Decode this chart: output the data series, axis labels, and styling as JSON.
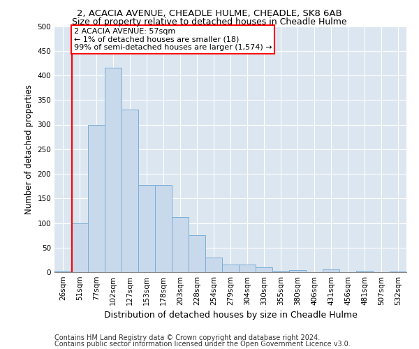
{
  "title": "2, ACACIA AVENUE, CHEADLE HULME, CHEADLE, SK8 6AB",
  "subtitle": "Size of property relative to detached houses in Cheadle Hulme",
  "xlabel": "Distribution of detached houses by size in Cheadle Hulme",
  "ylabel": "Number of detached properties",
  "bar_labels": [
    "26sqm",
    "51sqm",
    "77sqm",
    "102sqm",
    "127sqm",
    "153sqm",
    "178sqm",
    "203sqm",
    "228sqm",
    "254sqm",
    "279sqm",
    "304sqm",
    "330sqm",
    "355sqm",
    "380sqm",
    "406sqm",
    "431sqm",
    "456sqm",
    "481sqm",
    "507sqm",
    "532sqm"
  ],
  "bar_values": [
    3,
    100,
    300,
    415,
    330,
    178,
    178,
    112,
    75,
    30,
    15,
    15,
    10,
    3,
    4,
    0,
    6,
    0,
    3,
    0,
    2
  ],
  "bar_color": "#c8d9ec",
  "bar_edge_color": "#7aaed4",
  "background_color": "#dce6f0",
  "vline_color": "red",
  "vline_pos": 0.55,
  "annotation_text": "2 ACACIA AVENUE: 57sqm\n← 1% of detached houses are smaller (18)\n99% of semi-detached houses are larger (1,574) →",
  "annotation_box_color": "white",
  "annotation_box_edge": "red",
  "ylim": [
    0,
    500
  ],
  "yticks": [
    0,
    50,
    100,
    150,
    200,
    250,
    300,
    350,
    400,
    450,
    500
  ],
  "footer1": "Contains HM Land Registry data © Crown copyright and database right 2024.",
  "footer2": "Contains public sector information licensed under the Open Government Licence v3.0.",
  "title_fontsize": 9.5,
  "subtitle_fontsize": 9,
  "xlabel_fontsize": 9,
  "ylabel_fontsize": 8.5,
  "tick_fontsize": 7.5,
  "annotation_fontsize": 8,
  "footer_fontsize": 7
}
